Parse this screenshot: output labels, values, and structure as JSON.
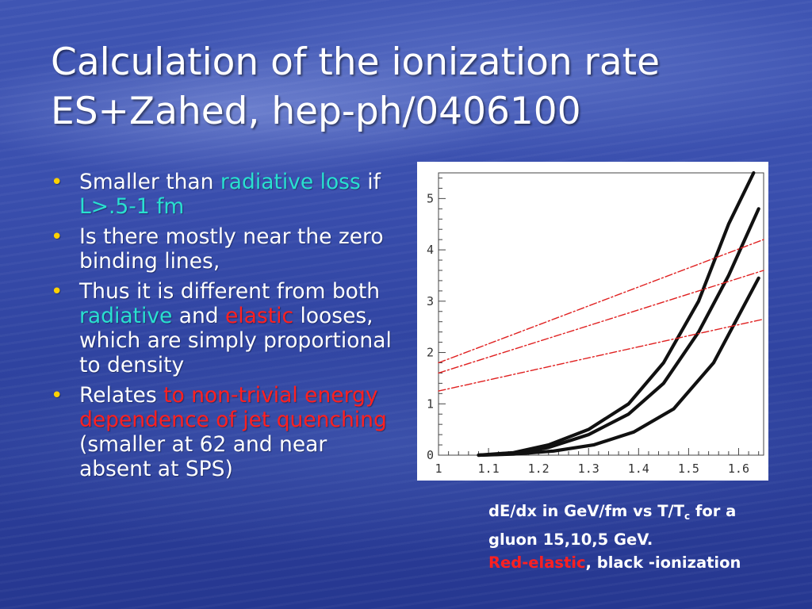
{
  "slide": {
    "title_line1": "Calculation of the ionization rate",
    "title_line2": "ES+Zahed, hep-ph/0406100",
    "bullets": [
      {
        "segments": [
          {
            "text": "Smaller than ",
            "color": "white"
          },
          {
            "text": "radiative loss",
            "color": "teal"
          },
          {
            "text": " if ",
            "color": "white"
          },
          {
            "text": "L>.5-1 fm",
            "color": "teal"
          }
        ]
      },
      {
        "segments": [
          {
            "text": "Is there mostly near the zero binding lines,",
            "color": "white"
          }
        ]
      },
      {
        "segments": [
          {
            "text": "Thus it is different from both ",
            "color": "white"
          },
          {
            "text": "radiative",
            "color": "teal"
          },
          {
            "text": " and ",
            "color": "white"
          },
          {
            "text": "elastic",
            "color": "red"
          },
          {
            "text": " looses, which are simply proportional to density",
            "color": "white"
          }
        ]
      },
      {
        "segments": [
          {
            "text": "Relates ",
            "color": "white"
          },
          {
            "text": "to non-trivial energy dependence of jet quenching",
            "color": "red"
          },
          {
            "text": " (smaller at 62 and near absent at SPS)",
            "color": "white"
          }
        ]
      }
    ],
    "caption": {
      "line1_pre": "dE/dx in GeV/fm vs T/T",
      "line1_sub": "c",
      "line1_post": " for a",
      "line2": "gluon 15,10,5 GeV.",
      "line3_red": "Red-elastic",
      "line3_rest": ", black -ionization"
    },
    "colors": {
      "teal": "#29e0d0",
      "red": "#ff2020",
      "bullet": "#ffd200"
    }
  },
  "chart_data": {
    "type": "line",
    "xlim": [
      1.0,
      1.65
    ],
    "ylim": [
      0,
      5.5
    ],
    "xticks": [
      "1",
      "1.1",
      "1.2",
      "1.3",
      "1.4",
      "1.5",
      "1.6"
    ],
    "yticks": [
      "0",
      "1",
      "2",
      "3",
      "4",
      "5"
    ],
    "grid": false,
    "series": [
      {
        "color": "#111111",
        "style": "solid",
        "x": [
          1.08,
          1.15,
          1.22,
          1.3,
          1.38,
          1.45,
          1.52,
          1.58,
          1.63
        ],
        "y": [
          0.0,
          0.05,
          0.2,
          0.5,
          1.0,
          1.8,
          3.0,
          4.5,
          5.5
        ]
      },
      {
        "color": "#111111",
        "style": "solid",
        "x": [
          1.08,
          1.15,
          1.22,
          1.3,
          1.38,
          1.45,
          1.52,
          1.58,
          1.64
        ],
        "y": [
          0.0,
          0.03,
          0.15,
          0.4,
          0.8,
          1.4,
          2.4,
          3.5,
          4.8
        ]
      },
      {
        "color": "#111111",
        "style": "solid",
        "x": [
          1.08,
          1.15,
          1.23,
          1.31,
          1.39,
          1.47,
          1.55,
          1.64
        ],
        "y": [
          0.0,
          0.02,
          0.08,
          0.2,
          0.45,
          0.9,
          1.8,
          3.45
        ]
      },
      {
        "color": "#e02020",
        "style": "dashed",
        "x": [
          1.0,
          1.65
        ],
        "y": [
          1.8,
          4.2
        ]
      },
      {
        "color": "#e02020",
        "style": "dashed",
        "x": [
          1.0,
          1.65
        ],
        "y": [
          1.6,
          3.6
        ]
      },
      {
        "color": "#e02020",
        "style": "dashed",
        "x": [
          1.0,
          1.65
        ],
        "y": [
          1.25,
          2.65
        ]
      }
    ]
  }
}
